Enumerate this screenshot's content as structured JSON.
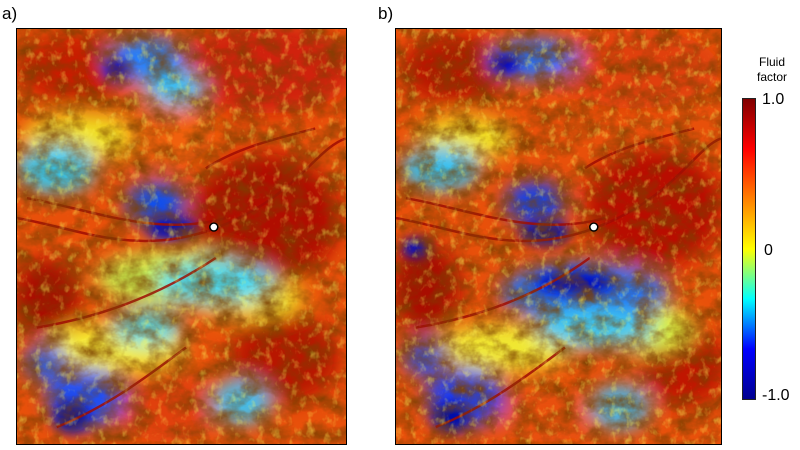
{
  "panels": [
    {
      "label": "a)",
      "well_marker": "well-marker-icon"
    },
    {
      "label": "b)",
      "well_marker": "well-marker-icon"
    }
  ],
  "colorbar": {
    "title_line1": "Fluid",
    "title_line2": "factor",
    "ticks": {
      "max": "1.0",
      "mid": "0",
      "min": "-1.0"
    },
    "range": [
      -1.0,
      1.0
    ],
    "colors": [
      "#00008f",
      "#0000ff",
      "#00ffff",
      "#ffff00",
      "#ff8000",
      "#ff0000",
      "#800000"
    ]
  }
}
